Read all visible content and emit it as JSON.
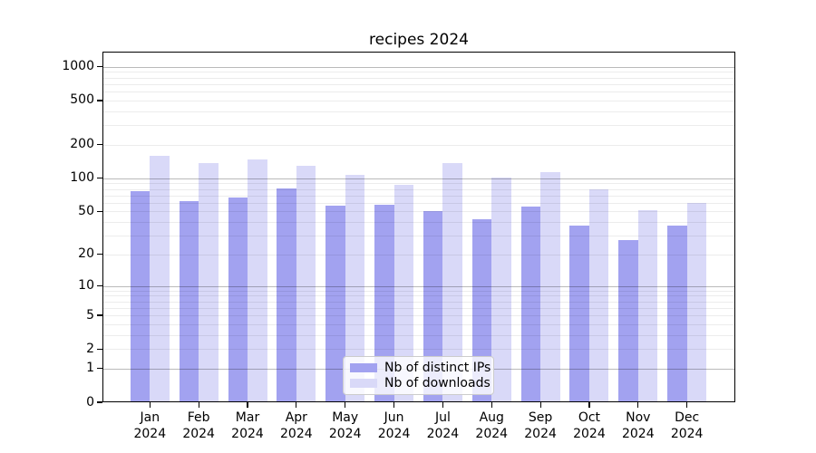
{
  "chart_data": {
    "type": "bar",
    "title": "recipes 2024",
    "categories": [
      "Jan 2024",
      "Feb 2024",
      "Mar 2024",
      "Apr 2024",
      "May 2024",
      "Jun 2024",
      "Jul 2024",
      "Aug 2024",
      "Sep 2024",
      "Oct 2024",
      "Nov 2024",
      "Dec 2024"
    ],
    "series": [
      {
        "name": "Nb of distinct IPs",
        "color": "#a2a2f0",
        "values": [
          77,
          62,
          67,
          81,
          56,
          58,
          50,
          42,
          55,
          37,
          27,
          37
        ]
      },
      {
        "name": "Nb of downloads",
        "color": "#d9d9f8",
        "values": [
          160,
          138,
          149,
          130,
          108,
          88,
          136,
          101,
          114,
          80,
          51,
          60
        ]
      }
    ],
    "xlabel": "",
    "ylabel": "",
    "yscale": "log1p",
    "ylim": [
      0,
      1370
    ],
    "y_ticks": [
      0,
      1,
      2,
      5,
      10,
      20,
      50,
      100,
      200,
      500,
      1000
    ],
    "grid": "on",
    "gridline_major_values": [
      1,
      10,
      100,
      1000
    ],
    "legend_position": "lower center"
  }
}
